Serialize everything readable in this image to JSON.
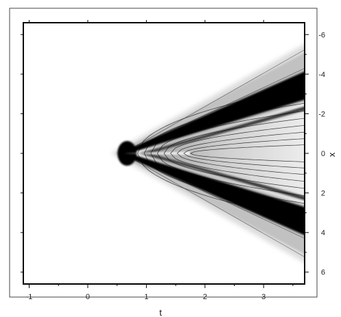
{
  "chart_data": {
    "type": "heatmap",
    "title": "",
    "xlabel": "t",
    "ylabel": "x",
    "xlim": [
      -1.1,
      3.7
    ],
    "ylim": [
      6.6,
      -6.6
    ],
    "y_axis_side": "right",
    "y_reversed": true,
    "colormap": "grayscale",
    "grid": false,
    "x_ticks": [
      -1,
      0,
      1,
      2,
      3
    ],
    "x_tick_labels": [
      "-1",
      "0",
      "1",
      "2",
      "3"
    ],
    "y_ticks": [
      -6,
      -4,
      -2,
      0,
      2,
      4,
      6
    ],
    "y_tick_labels": [
      "-6",
      "-4",
      "-2",
      "0",
      "2",
      "4",
      "6"
    ],
    "features": {
      "vertex": {
        "t": 0.55,
        "x": 0.0
      },
      "outer_front_slope": 1.75,
      "dark_band_slope": 1.05,
      "inner_front_slope": 0.55,
      "contour_levels": 9
    }
  },
  "colors": {
    "frame": "#000000",
    "background": "#ffffff",
    "dark_band": "#050505",
    "contour": "#000000"
  }
}
